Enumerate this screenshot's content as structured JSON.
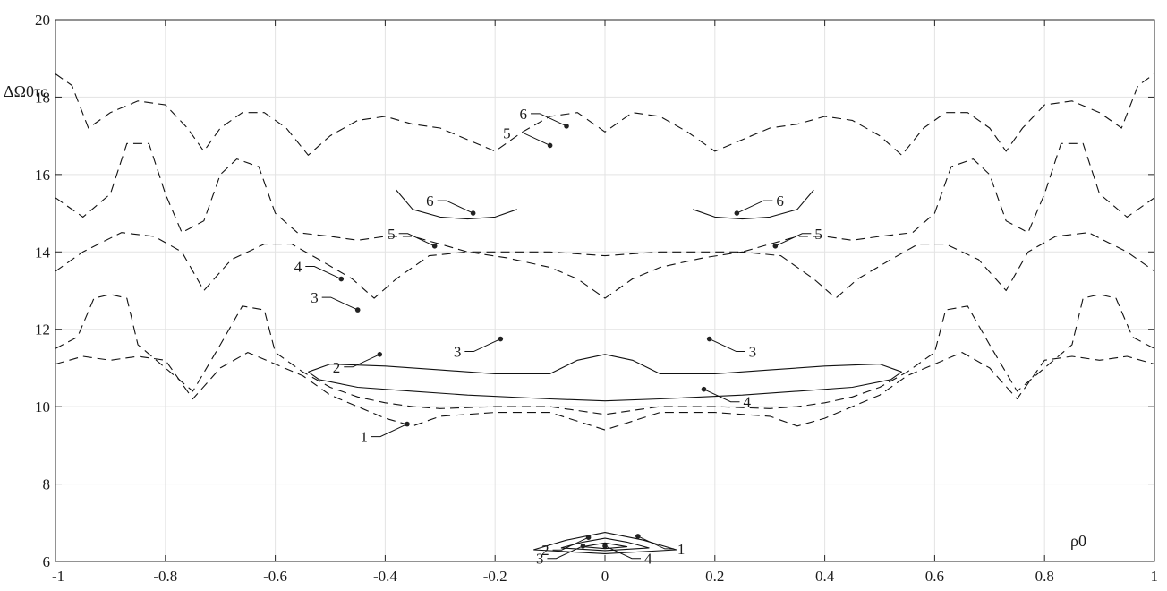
{
  "chart_data": {
    "type": "contour",
    "title": "",
    "xlabel": "ρ0",
    "ylabel": "ΔΩ0τc",
    "xlim": [
      -1,
      1
    ],
    "ylim": [
      6,
      20
    ],
    "grid": true,
    "x_ticks": [
      -1,
      -0.8,
      -0.6,
      -0.4,
      -0.2,
      0,
      0.2,
      0.4,
      0.6,
      0.8,
      1
    ],
    "x_tick_labels": [
      "-1",
      "-0.8",
      "-0.6",
      "-0.4",
      "-0.2",
      "0",
      "0.2",
      "0.4",
      "0.6",
      "0.8",
      "1"
    ],
    "y_ticks": [
      6,
      8,
      10,
      12,
      14,
      16,
      18,
      20
    ],
    "y_tick_labels": [
      "6",
      "8",
      "10",
      "12",
      "14",
      "16",
      "18",
      "20"
    ],
    "series": [
      {
        "style": "dashed",
        "points": [
          [
            -1.0,
            11.1
          ],
          [
            -0.95,
            11.3
          ],
          [
            -0.9,
            11.2
          ],
          [
            -0.85,
            11.3
          ],
          [
            -0.8,
            11.2
          ],
          [
            -0.75,
            10.2
          ],
          [
            -0.7,
            11.0
          ],
          [
            -0.65,
            11.4
          ],
          [
            -0.6,
            11.1
          ],
          [
            -0.55,
            10.8
          ],
          [
            -0.5,
            10.3
          ],
          [
            -0.45,
            10.0
          ],
          [
            -0.4,
            9.7
          ],
          [
            -0.35,
            9.5
          ],
          [
            -0.3,
            9.75
          ],
          [
            -0.2,
            9.85
          ],
          [
            -0.1,
            9.85
          ],
          [
            0.0,
            9.4
          ],
          [
            0.1,
            9.85
          ],
          [
            0.2,
            9.85
          ],
          [
            0.3,
            9.75
          ],
          [
            0.35,
            9.5
          ],
          [
            0.4,
            9.7
          ],
          [
            0.45,
            10.0
          ],
          [
            0.5,
            10.3
          ],
          [
            0.55,
            10.8
          ],
          [
            0.6,
            11.1
          ],
          [
            0.65,
            11.4
          ],
          [
            0.7,
            11.0
          ],
          [
            0.75,
            10.2
          ],
          [
            0.8,
            11.2
          ],
          [
            0.85,
            11.3
          ],
          [
            0.9,
            11.2
          ],
          [
            0.95,
            11.3
          ],
          [
            1.0,
            11.1
          ]
        ]
      },
      {
        "style": "dashed",
        "points": [
          [
            -1.0,
            11.5
          ],
          [
            -0.96,
            11.8
          ],
          [
            -0.93,
            12.8
          ],
          [
            -0.9,
            12.9
          ],
          [
            -0.87,
            12.8
          ],
          [
            -0.85,
            11.6
          ],
          [
            -0.8,
            11.0
          ],
          [
            -0.75,
            10.4
          ],
          [
            -0.7,
            11.6
          ],
          [
            -0.66,
            12.6
          ],
          [
            -0.62,
            12.5
          ],
          [
            -0.6,
            11.4
          ],
          [
            -0.55,
            10.9
          ],
          [
            -0.5,
            10.5
          ],
          [
            -0.45,
            10.25
          ],
          [
            -0.4,
            10.1
          ],
          [
            -0.35,
            10.0
          ],
          [
            -0.3,
            9.95
          ],
          [
            -0.2,
            10.0
          ],
          [
            -0.1,
            10.0
          ],
          [
            0.0,
            9.8
          ],
          [
            0.1,
            10.0
          ],
          [
            0.2,
            10.0
          ],
          [
            0.3,
            9.95
          ],
          [
            0.35,
            10.0
          ],
          [
            0.4,
            10.1
          ],
          [
            0.45,
            10.25
          ],
          [
            0.5,
            10.5
          ],
          [
            0.55,
            10.9
          ],
          [
            0.6,
            11.4
          ],
          [
            0.62,
            12.5
          ],
          [
            0.66,
            12.6
          ],
          [
            0.7,
            11.6
          ],
          [
            0.75,
            10.4
          ],
          [
            0.8,
            11.0
          ],
          [
            0.85,
            11.6
          ],
          [
            0.87,
            12.8
          ],
          [
            0.9,
            12.9
          ],
          [
            0.93,
            12.8
          ],
          [
            0.96,
            11.8
          ],
          [
            1.0,
            11.5
          ]
        ]
      },
      {
        "style": "dashed",
        "points": [
          [
            -1.0,
            13.5
          ],
          [
            -0.95,
            14.0
          ],
          [
            -0.88,
            14.5
          ],
          [
            -0.82,
            14.4
          ],
          [
            -0.77,
            14.0
          ],
          [
            -0.73,
            13.0
          ],
          [
            -0.68,
            13.8
          ],
          [
            -0.62,
            14.2
          ],
          [
            -0.57,
            14.2
          ],
          [
            -0.52,
            13.8
          ],
          [
            -0.46,
            13.3
          ],
          [
            -0.42,
            12.8
          ],
          [
            -0.38,
            13.3
          ],
          [
            -0.32,
            13.9
          ],
          [
            -0.25,
            14.0
          ],
          [
            -0.18,
            13.85
          ],
          [
            -0.1,
            13.6
          ],
          [
            -0.05,
            13.3
          ],
          [
            0.0,
            12.8
          ],
          [
            0.05,
            13.3
          ],
          [
            0.1,
            13.6
          ],
          [
            0.18,
            13.85
          ],
          [
            0.25,
            14.0
          ],
          [
            0.32,
            13.9
          ],
          [
            0.38,
            13.3
          ],
          [
            0.42,
            12.8
          ],
          [
            0.46,
            13.3
          ],
          [
            0.52,
            13.8
          ],
          [
            0.57,
            14.2
          ],
          [
            0.62,
            14.2
          ],
          [
            0.68,
            13.8
          ],
          [
            0.73,
            13.0
          ],
          [
            0.77,
            14.0
          ],
          [
            0.82,
            14.4
          ],
          [
            0.88,
            14.5
          ],
          [
            0.95,
            14.0
          ],
          [
            1.0,
            13.5
          ]
        ]
      },
      {
        "style": "dashed",
        "points": [
          [
            -1.0,
            15.4
          ],
          [
            -0.95,
            14.9
          ],
          [
            -0.9,
            15.5
          ],
          [
            -0.87,
            16.8
          ],
          [
            -0.83,
            16.8
          ],
          [
            -0.8,
            15.5
          ],
          [
            -0.77,
            14.5
          ],
          [
            -0.73,
            14.8
          ],
          [
            -0.7,
            16.0
          ],
          [
            -0.67,
            16.4
          ],
          [
            -0.63,
            16.2
          ],
          [
            -0.6,
            15.0
          ],
          [
            -0.56,
            14.5
          ],
          [
            -0.5,
            14.4
          ],
          [
            -0.45,
            14.3
          ],
          [
            -0.4,
            14.4
          ],
          [
            -0.35,
            14.4
          ],
          [
            -0.3,
            14.2
          ],
          [
            -0.25,
            14.0
          ],
          [
            -0.2,
            14.0
          ],
          [
            -0.1,
            14.0
          ],
          [
            0.0,
            13.9
          ],
          [
            0.1,
            14.0
          ],
          [
            0.2,
            14.0
          ],
          [
            0.25,
            14.0
          ],
          [
            0.3,
            14.2
          ],
          [
            0.35,
            14.4
          ],
          [
            0.4,
            14.4
          ],
          [
            0.45,
            14.3
          ],
          [
            0.5,
            14.4
          ],
          [
            0.56,
            14.5
          ],
          [
            0.6,
            15.0
          ],
          [
            0.63,
            16.2
          ],
          [
            0.67,
            16.4
          ],
          [
            0.7,
            16.0
          ],
          [
            0.73,
            14.8
          ],
          [
            0.77,
            14.5
          ],
          [
            0.8,
            15.5
          ],
          [
            0.83,
            16.8
          ],
          [
            0.87,
            16.8
          ],
          [
            0.9,
            15.5
          ],
          [
            0.95,
            14.9
          ],
          [
            1.0,
            15.4
          ]
        ]
      },
      {
        "style": "dashed",
        "points": [
          [
            -1.0,
            18.6
          ],
          [
            -0.97,
            18.3
          ],
          [
            -0.94,
            17.2
          ],
          [
            -0.9,
            17.6
          ],
          [
            -0.85,
            17.9
          ],
          [
            -0.8,
            17.8
          ],
          [
            -0.76,
            17.2
          ],
          [
            -0.73,
            16.6
          ],
          [
            -0.7,
            17.2
          ],
          [
            -0.66,
            17.6
          ],
          [
            -0.62,
            17.6
          ],
          [
            -0.58,
            17.2
          ],
          [
            -0.54,
            16.5
          ],
          [
            -0.5,
            17.0
          ],
          [
            -0.45,
            17.4
          ],
          [
            -0.4,
            17.5
          ],
          [
            -0.35,
            17.3
          ],
          [
            -0.3,
            17.2
          ],
          [
            -0.25,
            16.9
          ],
          [
            -0.2,
            16.6
          ],
          [
            -0.15,
            17.1
          ],
          [
            -0.1,
            17.5
          ],
          [
            -0.05,
            17.6
          ],
          [
            0.0,
            17.1
          ],
          [
            0.05,
            17.6
          ],
          [
            0.1,
            17.5
          ],
          [
            0.15,
            17.1
          ],
          [
            0.2,
            16.6
          ],
          [
            0.25,
            16.9
          ],
          [
            0.3,
            17.2
          ],
          [
            0.35,
            17.3
          ],
          [
            0.4,
            17.5
          ],
          [
            0.45,
            17.4
          ],
          [
            0.5,
            17.0
          ],
          [
            0.54,
            16.5
          ],
          [
            0.58,
            17.2
          ],
          [
            0.62,
            17.6
          ],
          [
            0.66,
            17.6
          ],
          [
            0.7,
            17.2
          ],
          [
            0.73,
            16.6
          ],
          [
            0.76,
            17.2
          ],
          [
            0.8,
            17.8
          ],
          [
            0.85,
            17.9
          ],
          [
            0.9,
            17.6
          ],
          [
            0.94,
            17.2
          ],
          [
            0.97,
            18.3
          ],
          [
            1.0,
            18.6
          ]
        ]
      },
      {
        "style": "solid",
        "points": [
          [
            -0.54,
            10.9
          ],
          [
            -0.5,
            11.1
          ],
          [
            -0.4,
            11.05
          ],
          [
            -0.3,
            10.95
          ],
          [
            -0.2,
            10.85
          ],
          [
            -0.1,
            10.85
          ],
          [
            -0.05,
            11.2
          ],
          [
            0.0,
            11.35
          ],
          [
            0.05,
            11.2
          ],
          [
            0.1,
            10.85
          ],
          [
            0.2,
            10.85
          ],
          [
            0.3,
            10.95
          ],
          [
            0.4,
            11.05
          ],
          [
            0.5,
            11.1
          ],
          [
            0.54,
            10.9
          ]
        ]
      },
      {
        "style": "solid",
        "points": [
          [
            -0.54,
            10.9
          ],
          [
            -0.52,
            10.7
          ],
          [
            -0.45,
            10.5
          ],
          [
            -0.35,
            10.4
          ],
          [
            -0.25,
            10.3
          ],
          [
            -0.1,
            10.2
          ],
          [
            0.0,
            10.15
          ],
          [
            0.1,
            10.2
          ],
          [
            0.25,
            10.3
          ],
          [
            0.35,
            10.4
          ],
          [
            0.45,
            10.5
          ],
          [
            0.52,
            10.7
          ],
          [
            0.54,
            10.9
          ]
        ]
      },
      {
        "style": "solid",
        "points": [
          [
            -0.38,
            15.6
          ],
          [
            -0.35,
            15.1
          ],
          [
            -0.3,
            14.9
          ],
          [
            -0.25,
            14.85
          ],
          [
            -0.2,
            14.9
          ],
          [
            -0.16,
            15.1
          ]
        ]
      },
      {
        "style": "solid",
        "points": [
          [
            0.16,
            15.1
          ],
          [
            0.2,
            14.9
          ],
          [
            0.25,
            14.85
          ],
          [
            0.3,
            14.9
          ],
          [
            0.35,
            15.1
          ],
          [
            0.38,
            15.6
          ]
        ]
      }
    ],
    "inset_contours": [
      {
        "style": "solid",
        "points": [
          [
            -0.13,
            6.3
          ],
          [
            -0.07,
            6.55
          ],
          [
            0.0,
            6.75
          ],
          [
            0.07,
            6.55
          ],
          [
            0.13,
            6.3
          ],
          [
            0.0,
            6.2
          ],
          [
            -0.13,
            6.3
          ]
        ]
      },
      {
        "style": "solid",
        "points": [
          [
            -0.08,
            6.35
          ],
          [
            -0.04,
            6.5
          ],
          [
            0.0,
            6.6
          ],
          [
            0.04,
            6.5
          ],
          [
            0.08,
            6.35
          ],
          [
            0.0,
            6.28
          ],
          [
            -0.08,
            6.35
          ]
        ]
      },
      {
        "style": "solid",
        "points": [
          [
            -0.04,
            6.38
          ],
          [
            0.0,
            6.48
          ],
          [
            0.04,
            6.38
          ],
          [
            0.0,
            6.33
          ],
          [
            -0.04,
            6.38
          ]
        ]
      }
    ],
    "annotations": [
      {
        "text": "1",
        "x": -0.36,
        "y": 9.55
      },
      {
        "text": "2",
        "x": -0.41,
        "y": 11.35
      },
      {
        "text": "3",
        "x": -0.45,
        "y": 12.5
      },
      {
        "text": "4",
        "x": -0.48,
        "y": 13.3
      },
      {
        "text": "5",
        "x": -0.31,
        "y": 14.15
      },
      {
        "text": "6",
        "x": -0.24,
        "y": 15.0
      },
      {
        "text": "5",
        "x": -0.1,
        "y": 16.75
      },
      {
        "text": "6",
        "x": -0.07,
        "y": 17.25
      },
      {
        "text": "6",
        "x": 0.24,
        "y": 15.0
      },
      {
        "text": "5",
        "x": 0.31,
        "y": 14.15
      },
      {
        "text": "3",
        "x": -0.19,
        "y": 11.75
      },
      {
        "text": "3",
        "x": 0.19,
        "y": 11.75
      },
      {
        "text": "4",
        "x": 0.18,
        "y": 10.45
      },
      {
        "text": "2",
        "x": -0.03,
        "y": 6.62
      },
      {
        "text": "4",
        "x": 0.0,
        "y": 6.4
      },
      {
        "text": "1",
        "x": 0.06,
        "y": 6.65
      },
      {
        "text": "3",
        "x": -0.04,
        "y": 6.4
      }
    ]
  }
}
